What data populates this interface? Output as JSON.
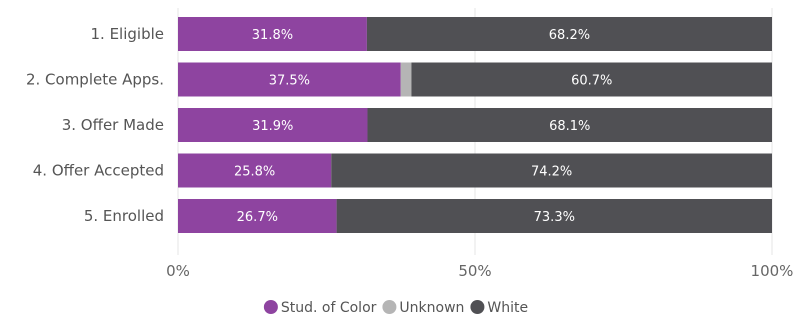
{
  "chart_data": {
    "type": "bar",
    "orientation": "horizontal",
    "stacked": true,
    "categories": [
      "1. Eligible",
      "2. Complete Apps.",
      "3. Offer Made",
      "4. Offer Accepted",
      "5. Enrolled"
    ],
    "series": [
      {
        "name": "Stud. of Color",
        "color": "#8e44a0",
        "values": [
          31.8,
          37.5,
          31.9,
          25.8,
          26.7
        ],
        "labels": [
          "31.8%",
          "37.5%",
          "31.9%",
          "25.8%",
          "26.7%"
        ]
      },
      {
        "name": "Unknown",
        "color": "#b5b5b5",
        "values": [
          0.0,
          1.8,
          0.0,
          0.0,
          0.0
        ],
        "labels": [
          "",
          "",
          "",
          "",
          ""
        ]
      },
      {
        "name": "White",
        "color": "#505054",
        "values": [
          68.2,
          60.7,
          68.1,
          74.2,
          73.3
        ],
        "labels": [
          "68.2%",
          "60.7%",
          "68.1%",
          "74.2%",
          "73.3%"
        ]
      }
    ],
    "xlim": [
      0,
      100
    ],
    "x_ticks": [
      0,
      50,
      100
    ],
    "x_tick_labels": [
      "0%",
      "50%",
      "100%"
    ],
    "grid": true,
    "legend_position": "bottom-center",
    "title": "",
    "xlabel": "",
    "ylabel": ""
  }
}
